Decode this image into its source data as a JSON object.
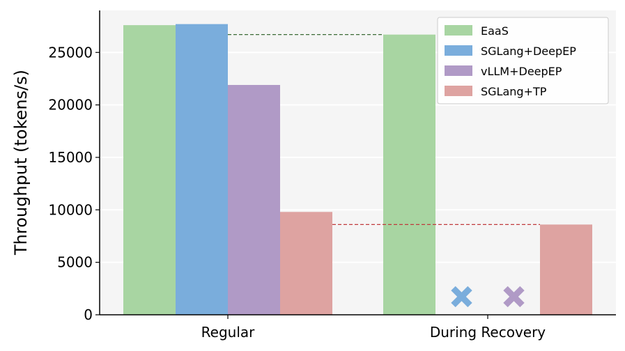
{
  "chart_data": {
    "type": "bar",
    "title": "",
    "xlabel": "",
    "ylabel": "Throughput (tokens/s)",
    "categories": [
      "Regular",
      "During Recovery"
    ],
    "ylim": [
      0,
      29000
    ],
    "yticks": [
      0,
      5000,
      10000,
      15000,
      20000,
      25000
    ],
    "grid": "horizontal",
    "legend_position": "top-right",
    "series": [
      {
        "name": "EaaS",
        "color": "#a8d5a2",
        "values": [
          27600,
          26700
        ]
      },
      {
        "name": "SGLang+DeepEP",
        "color": "#7aaddc",
        "values": [
          27700,
          null
        ],
        "failed_marker": [
          false,
          true
        ],
        "marker_icon": "cross-icon"
      },
      {
        "name": "vLLM+DeepEP",
        "color": "#b09ac6",
        "values": [
          21900,
          null
        ],
        "failed_marker": [
          false,
          true
        ],
        "marker_icon": "cross-icon"
      },
      {
        "name": "SGLang+TP",
        "color": "#dea3a1",
        "values": [
          9800,
          8600
        ]
      }
    ],
    "reference_lines": [
      {
        "value": 26700,
        "color": "#3a6b35",
        "style": "dashed"
      },
      {
        "value": 8600,
        "color": "#c0393b",
        "style": "dashed"
      }
    ]
  }
}
